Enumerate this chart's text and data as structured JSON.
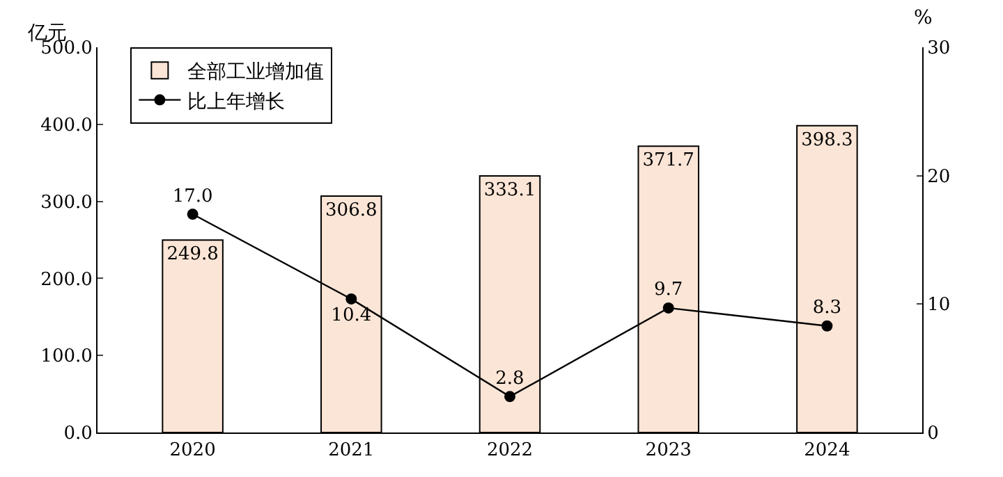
{
  "chart_data": {
    "type": "bar",
    "categories": [
      "2020",
      "2021",
      "2022",
      "2023",
      "2024"
    ],
    "ylabel": "亿元",
    "y2label": "%",
    "series": [
      {
        "name": "全部工业增加值",
        "color": "#fbe5d6",
        "values": [
          249.8,
          306.8,
          333.1,
          371.7,
          398.3
        ],
        "value_labels": [
          "249.8",
          "306.8",
          "333.1",
          "371.7",
          "398.3"
        ]
      },
      {
        "name": "比上年增长",
        "type": "line",
        "axis": "y2",
        "color": "#000000",
        "values": [
          17.0,
          10.4,
          2.8,
          9.7,
          8.3
        ],
        "value_labels": [
          "17.0",
          "10.4",
          "2.8",
          "9.7",
          "8.3"
        ]
      }
    ],
    "ylim": [
      0,
      500
    ],
    "yticks": [
      {
        "value": 0,
        "label": "0.0"
      },
      {
        "value": 100,
        "label": "100.0"
      },
      {
        "value": 200,
        "label": "200.0"
      },
      {
        "value": 300,
        "label": "300.0"
      },
      {
        "value": 400,
        "label": "400.0"
      },
      {
        "value": 500,
        "label": "500.0"
      }
    ],
    "y2lim": [
      0,
      30
    ],
    "y2ticks": [
      0,
      10,
      20,
      30
    ],
    "marker": "circle",
    "line_style": "solid",
    "legend": "top left"
  }
}
